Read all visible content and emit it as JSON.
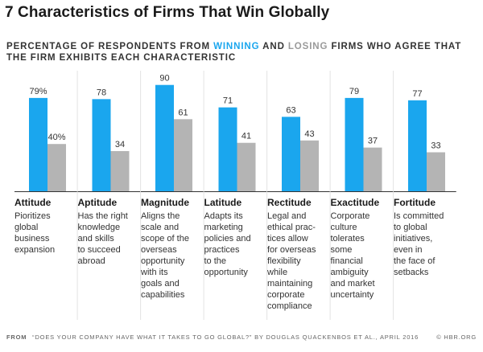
{
  "title": "7 Characteristics of Firms That Win Globally",
  "subtitle": {
    "part1": "PERCENTAGE OF RESPONDENTS FROM ",
    "winning": "WINNING",
    "part2": " AND ",
    "losing": "LOSING",
    "part3": " FIRMS WHO AGREE THAT THE FIRM EXHIBITS EACH CHARACTERISTIC"
  },
  "colors": {
    "winning": "#1aa6ee",
    "losing": "#b4b4b4",
    "divider": "#e3e3e3"
  },
  "chart_data": {
    "type": "bar",
    "ylim": [
      0,
      100
    ],
    "categories": [
      "Attitude",
      "Aptitude",
      "Magnitude",
      "Latitude",
      "Rectitude",
      "Exactitude",
      "Fortitude"
    ],
    "descriptions": [
      [
        "Pioritizes",
        "global",
        "business",
        "expansion"
      ],
      [
        "Has the right",
        "knowledge",
        "and skills",
        "to succeed",
        "abroad"
      ],
      [
        "Aligns the",
        "scale and",
        "scope of the",
        "overseas",
        "opportunity",
        "with its",
        "goals and",
        "capabilities"
      ],
      [
        "Adapts its",
        "marketing",
        "policies and",
        "practices",
        "to the",
        "opportunity"
      ],
      [
        "Legal and",
        "ethical prac-",
        "tices allow",
        "for overseas",
        "flexibility",
        "while",
        "maintaining",
        "corporate",
        "compliance"
      ],
      [
        "Corporate",
        "culture",
        "tolerates",
        "some",
        "financial",
        "ambiguity",
        "and market",
        "uncertainty"
      ],
      [
        "Is committed",
        "to global",
        "initiatives,",
        "even in",
        "the face of",
        "setbacks"
      ]
    ],
    "series": [
      {
        "name": "WINNING",
        "values": [
          79,
          78,
          90,
          71,
          63,
          79,
          77
        ],
        "labels": [
          "79%",
          "78",
          "90",
          "71",
          "63",
          "79",
          "77"
        ]
      },
      {
        "name": "LOSING",
        "values": [
          40,
          34,
          61,
          41,
          43,
          37,
          33
        ],
        "labels": [
          "40%",
          "34",
          "61",
          "41",
          "43",
          "37",
          "33"
        ]
      }
    ]
  },
  "footer": {
    "from_label": "FROM",
    "citation": "“DOES YOUR COMPANY HAVE WHAT IT TAKES TO GO GLOBAL?” BY DOUGLAS QUACKENBOS ET AL., APRIL 2016",
    "source": "© HBR.ORG"
  }
}
